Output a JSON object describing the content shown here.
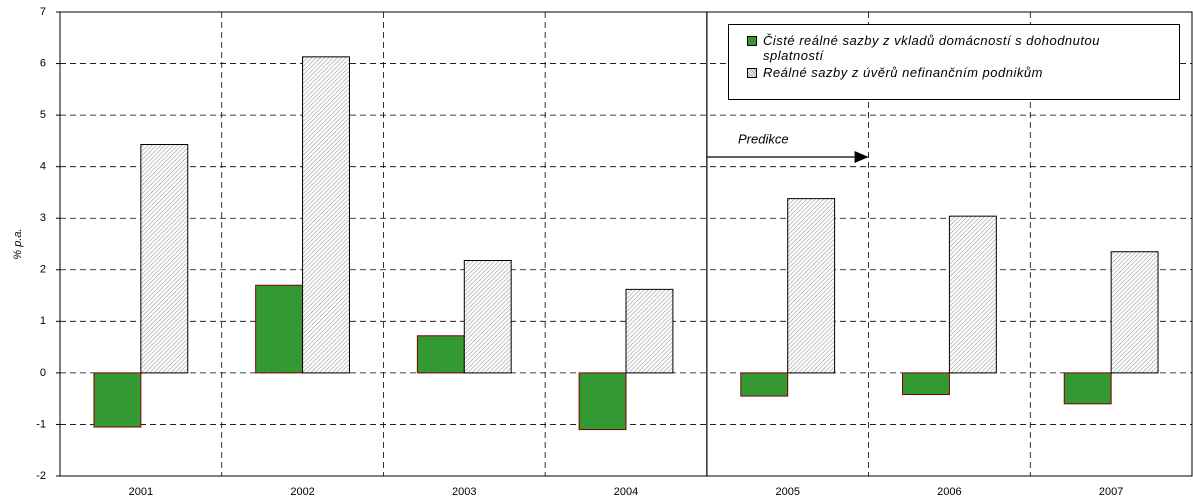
{
  "chart_data": {
    "type": "bar",
    "y_label": "% p.a.",
    "annotation": "Predikce",
    "categories": [
      "2001",
      "2002",
      "2003",
      "2004",
      "2005",
      "2006",
      "2007"
    ],
    "series": [
      {
        "name": "Čisté reálné sazby z vkladů domácností s dohodnutou splatností",
        "color": "#339933",
        "values": [
          -1.05,
          1.7,
          0.72,
          -1.1,
          -0.45,
          -0.42,
          -0.6
        ]
      },
      {
        "name": "Reálné sazby z úvěrů nefinančním podnikům",
        "color": "#d9d9d9",
        "values": [
          4.43,
          6.13,
          2.18,
          1.62,
          3.38,
          3.04,
          2.35
        ]
      }
    ],
    "ylim": [
      -2,
      7
    ],
    "yticks": [
      -2,
      -1,
      0,
      1,
      2,
      3,
      4,
      5,
      6,
      7
    ],
    "grid": true,
    "legend": "top-right"
  }
}
